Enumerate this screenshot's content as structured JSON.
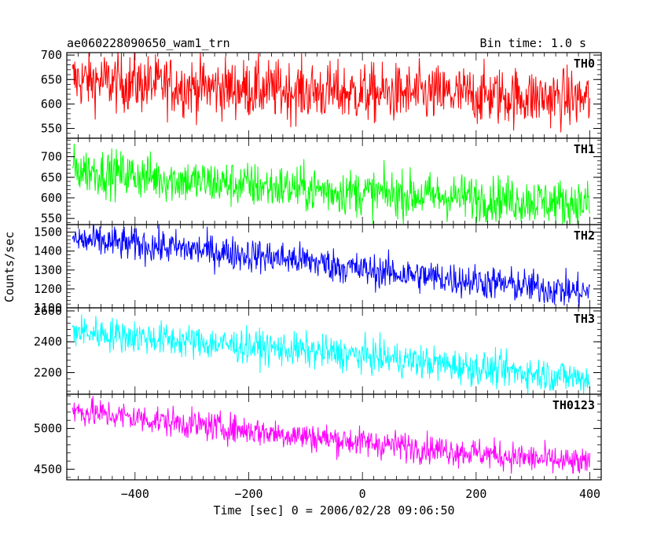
{
  "header": {
    "title": "ae060228090650_wam1_trn",
    "bin_time": "Bin time: 1.0 s"
  },
  "axes": {
    "xlabel": "Time [sec] 0 = 2006/02/28 09:06:50",
    "ylabel": "Counts/sec"
  },
  "chart_data": {
    "type": "line",
    "title": "ae060228090650_wam1_trn",
    "xlabel": "Time [sec] 0 = 2006/02/28 09:06:50",
    "ylabel": "Counts/sec",
    "xlim": [
      -520,
      420
    ],
    "x_ticks": [
      -400,
      -200,
      0,
      200,
      400
    ],
    "x_range_data": [
      -510,
      400
    ],
    "bin_time_s": 1.0,
    "grid": false,
    "panels": [
      {
        "name": "TH0",
        "color": "#ff0000",
        "ylim": [
          530,
          705
        ],
        "y_ticks": [
          550,
          600,
          650,
          700
        ],
        "trend": [
          [
            -510,
            650
          ],
          [
            -300,
            635
          ],
          [
            0,
            622
          ],
          [
            200,
            618
          ],
          [
            400,
            610
          ]
        ],
        "noise_amplitude": 30
      },
      {
        "name": "TH1",
        "color": "#00ff00",
        "ylim": [
          535,
          745
        ],
        "y_ticks": [
          550,
          600,
          650,
          700
        ],
        "trend": [
          [
            -510,
            670
          ],
          [
            -300,
            640
          ],
          [
            0,
            612
          ],
          [
            200,
            600
          ],
          [
            400,
            585
          ]
        ],
        "noise_amplitude": 28
      },
      {
        "name": "TH2",
        "color": "#0000ff",
        "ylim": [
          1100,
          1540
        ],
        "y_ticks": [
          1100,
          1200,
          1300,
          1400,
          1500
        ],
        "trend": [
          [
            -510,
            1460
          ],
          [
            -300,
            1410
          ],
          [
            -100,
            1350
          ],
          [
            0,
            1300
          ],
          [
            200,
            1240
          ],
          [
            400,
            1180
          ]
        ],
        "noise_amplitude": 45
      },
      {
        "name": "TH3",
        "color": "#00ffff",
        "ylim": [
          2060,
          2620
        ],
        "y_ticks": [
          2200,
          2400,
          2600
        ],
        "trend": [
          [
            -510,
            2470
          ],
          [
            -300,
            2400
          ],
          [
            0,
            2310
          ],
          [
            200,
            2230
          ],
          [
            400,
            2160
          ]
        ],
        "noise_amplitude": 55
      },
      {
        "name": "TH0123",
        "color": "#ff00ff",
        "ylim": [
          4370,
          5420
        ],
        "y_ticks": [
          4500,
          5000
        ],
        "trend": [
          [
            -510,
            5220
          ],
          [
            -300,
            5050
          ],
          [
            0,
            4830
          ],
          [
            200,
            4700
          ],
          [
            400,
            4560
          ]
        ],
        "noise_amplitude": 90
      }
    ]
  }
}
